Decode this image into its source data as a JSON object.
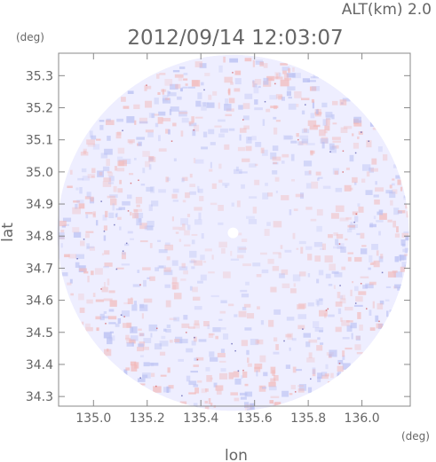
{
  "header": {
    "altitude_label": "ALT(km)  2.0",
    "timestamp": "2012/09/14  12:03:07"
  },
  "chart_data": {
    "type": "heatmap",
    "title": "2012/09/14  12:03:07",
    "xlabel": "lon",
    "ylabel": "lat",
    "x_unit": "(deg)",
    "y_unit": "(deg)",
    "xlim": [
      134.87,
      136.18
    ],
    "ylim": [
      34.27,
      35.37
    ],
    "x_ticks": [
      135.0,
      135.2,
      135.4,
      135.6,
      135.8,
      136.0
    ],
    "x_tick_labels": [
      "135.0",
      "135.2",
      "135.4",
      "135.6",
      "135.8",
      "136.0"
    ],
    "y_ticks": [
      34.3,
      34.4,
      34.5,
      34.6,
      34.7,
      34.8,
      34.9,
      35.0,
      35.1,
      35.2,
      35.3
    ],
    "y_tick_labels": [
      "34.3",
      "34.4",
      "34.5",
      "34.6",
      "34.7",
      "34.8",
      "34.9",
      "35.0",
      "35.1",
      "35.2",
      "35.3"
    ],
    "grid": false,
    "radar_center": {
      "lon": 135.52,
      "lat": 34.81
    },
    "radar_radius_deg": {
      "lon": 0.655,
      "lat": 0.555
    },
    "colors": {
      "positive": "#f2b8b8",
      "negative": "#b8bff2",
      "neutral": "#eeeeff",
      "axis": "#888888",
      "text": "#666666"
    }
  }
}
